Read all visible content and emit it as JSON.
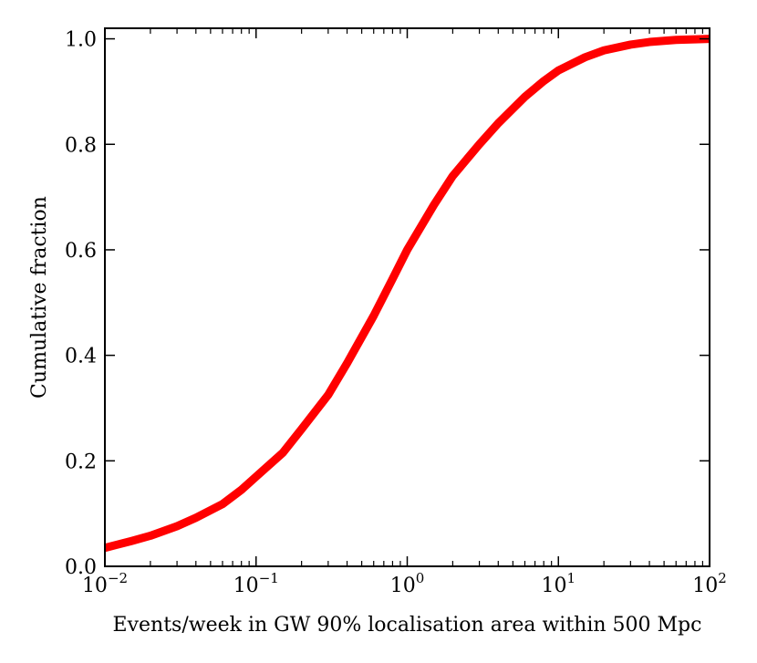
{
  "chart_data": {
    "type": "line",
    "title": "",
    "xlabel": "Events/week in GW 90% localisation area within 500 Mpc",
    "ylabel": "Cumulative fraction",
    "xscale": "log",
    "xlim": [
      0.01,
      100
    ],
    "ylim": [
      0.0,
      1.02
    ],
    "grid": false,
    "x_ticks": [
      {
        "value": 0.01,
        "base": "10",
        "exp": "−2"
      },
      {
        "value": 0.1,
        "base": "10",
        "exp": "−1"
      },
      {
        "value": 1,
        "base": "10",
        "exp": "0"
      },
      {
        "value": 10,
        "base": "10",
        "exp": "1"
      },
      {
        "value": 100,
        "base": "10",
        "exp": "2"
      }
    ],
    "y_ticks": [
      {
        "value": 0.0,
        "label": "0.0"
      },
      {
        "value": 0.2,
        "label": "0.2"
      },
      {
        "value": 0.4,
        "label": "0.4"
      },
      {
        "value": 0.6,
        "label": "0.6"
      },
      {
        "value": 0.8,
        "label": "0.8"
      },
      {
        "value": 1.0,
        "label": "1.0"
      }
    ],
    "series": [
      {
        "name": "cumulative",
        "color": "#ff0000",
        "x": [
          0.01,
          0.015,
          0.02,
          0.03,
          0.04,
          0.06,
          0.08,
          0.1,
          0.15,
          0.2,
          0.3,
          0.4,
          0.6,
          0.8,
          1,
          1.5,
          2,
          3,
          4,
          6,
          8,
          10,
          15,
          20,
          30,
          40,
          60,
          80,
          100
        ],
        "y": [
          0.035,
          0.048,
          0.058,
          0.076,
          0.092,
          0.118,
          0.145,
          0.17,
          0.215,
          0.26,
          0.325,
          0.385,
          0.475,
          0.545,
          0.6,
          0.685,
          0.74,
          0.8,
          0.84,
          0.89,
          0.92,
          0.94,
          0.965,
          0.978,
          0.989,
          0.994,
          0.998,
          0.999,
          1.0
        ]
      }
    ]
  }
}
